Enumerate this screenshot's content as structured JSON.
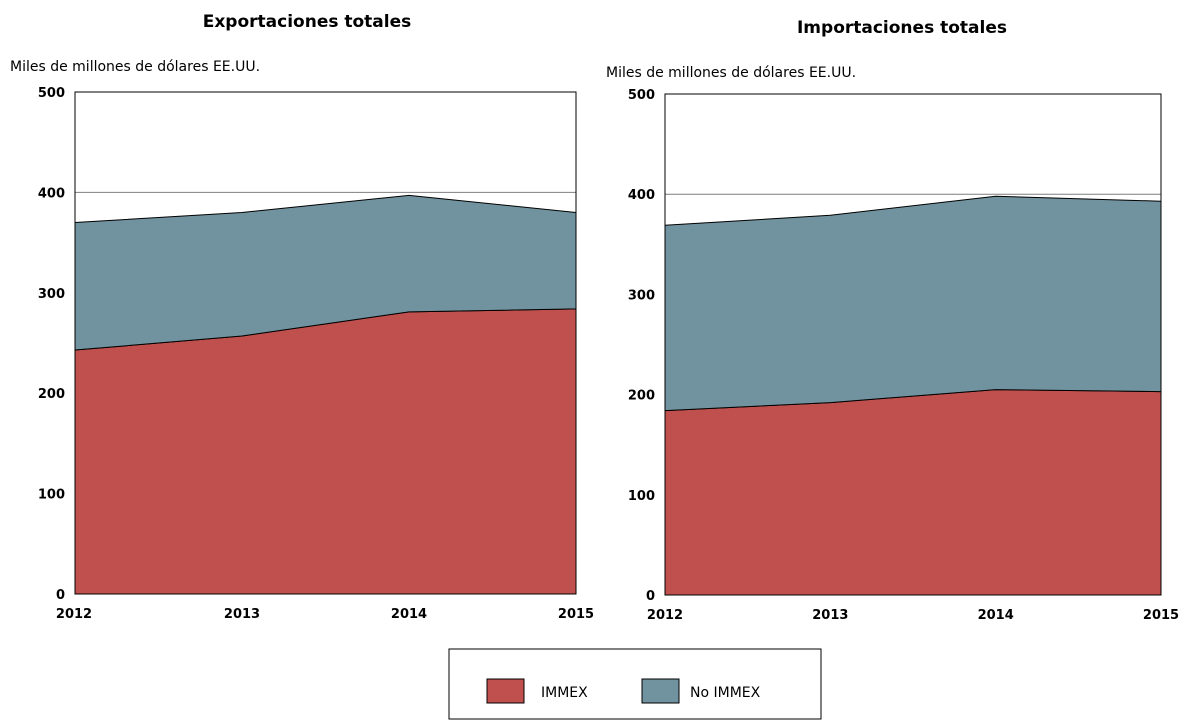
{
  "colors": {
    "immex": "#c0504d",
    "no_immex": "#71939f",
    "outline": "#000000",
    "grid": "#7f7f7f"
  },
  "legend": {
    "items": [
      {
        "label": "IMMEX",
        "color": "#c0504d"
      },
      {
        "label": "No IMMEX",
        "color": "#71939f"
      }
    ],
    "placement": "bottom-center"
  },
  "chart_data": [
    {
      "type": "area",
      "stacked": true,
      "title": "Exportaciones totales",
      "ylabel": "Miles de millones de dólares EE.UU.",
      "x": [
        "2012",
        "2013",
        "2014",
        "2015"
      ],
      "yticks": [
        "0",
        "100",
        "200",
        "300",
        "400",
        "500"
      ],
      "ylim": [
        0,
        500
      ],
      "gridlines": [
        400
      ],
      "series": [
        {
          "name": "IMMEX",
          "values": [
            243,
            257,
            281,
            284
          ]
        },
        {
          "name": "No IMMEX",
          "values": [
            127,
            123,
            116,
            96
          ]
        }
      ]
    },
    {
      "type": "area",
      "stacked": true,
      "title": "Importaciones totales",
      "ylabel": "Miles de millones de dólares EE.UU.",
      "x": [
        "2012",
        "2013",
        "2014",
        "2015"
      ],
      "yticks": [
        "0",
        "100",
        "200",
        "300",
        "400",
        "500"
      ],
      "ylim": [
        0,
        500
      ],
      "gridlines": [
        400
      ],
      "series": [
        {
          "name": "IMMEX",
          "values": [
            184,
            192,
            205,
            203
          ]
        },
        {
          "name": "No IMMEX",
          "values": [
            185,
            187,
            193,
            190
          ]
        }
      ]
    }
  ]
}
